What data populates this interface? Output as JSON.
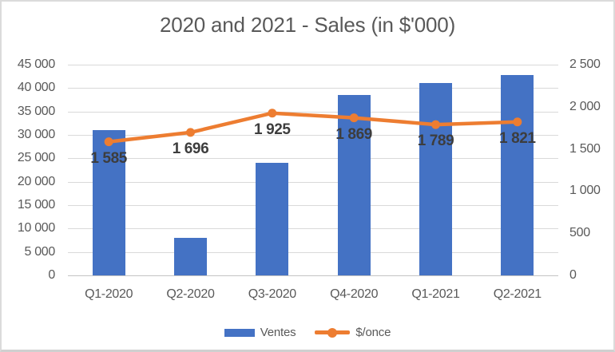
{
  "title": "2020 and 2021 - Sales (in $'000)",
  "colors": {
    "bar": "#4472C4",
    "line": "#ED7D31",
    "grid": "#D9D9D9",
    "axis_line": "#C3C3C3",
    "axis_text": "#595959",
    "data_label_text": "#3D3D3D"
  },
  "legend": {
    "items": [
      {
        "label": "Ventes",
        "swatch": "bar-swatch"
      },
      {
        "label": "$/once",
        "swatch": "line-marker-swatch"
      }
    ]
  },
  "chart_data": {
    "type": "combo-bar-line",
    "title": "2020 and 2021 - Sales (in $'000)",
    "categories": [
      "Q1-2020",
      "Q2-2020",
      "Q3-2020",
      "Q4-2020",
      "Q1-2021",
      "Q2-2021"
    ],
    "series": [
      {
        "name": "Ventes",
        "type": "bar",
        "axis": "left",
        "values": [
          31000,
          8000,
          24000,
          38500,
          41000,
          42800
        ]
      },
      {
        "name": "$/once",
        "type": "line",
        "axis": "right",
        "values": [
          1585,
          1696,
          1925,
          1869,
          1789,
          1821
        ],
        "point_labels": [
          "1 585",
          "1 696",
          "1 925",
          "1 869",
          "1 789",
          "1 821"
        ],
        "label_position": "below"
      }
    ],
    "left_axis": {
      "min": 0,
      "max": 45000,
      "step": 5000,
      "tick_labels": [
        "45 000",
        "40 000",
        "35 000",
        "30 000",
        "25 000",
        "20 000",
        "15 000",
        "10 000",
        "5 000",
        "0"
      ]
    },
    "right_axis": {
      "min": 0,
      "max": 2500,
      "step": 500,
      "tick_labels": [
        "2 500",
        "2 000",
        "1 500",
        "1 000",
        "500",
        "0"
      ]
    },
    "grid": "horizontal",
    "legend_position": "bottom"
  }
}
